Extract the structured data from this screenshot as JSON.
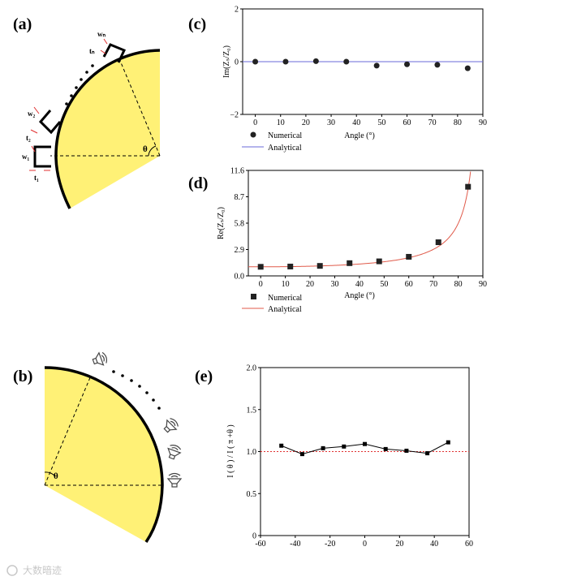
{
  "colors": {
    "yellow": "#fff176",
    "blue_line": "#6a6ad8",
    "red_line": "#e05a4a",
    "red_dotted": "#e03030",
    "marker": "#222222"
  },
  "panels": {
    "a": {
      "label": "(a)",
      "theta": "θ",
      "annotations": [
        "w₁",
        "t₁",
        "w₂",
        "t₂",
        "wₙ",
        "tₙ"
      ]
    },
    "b": {
      "label": "(b)",
      "theta": "θ",
      "icon": "speaker-icon"
    },
    "c": {
      "label": "(c)"
    },
    "d": {
      "label": "(d)"
    },
    "e": {
      "label": "(e)"
    }
  },
  "watermark": "大数暗迹",
  "chart_data": [
    {
      "id": "c",
      "type": "scatter",
      "ylabel": "Im(Zₛ/Z₀)",
      "xlabel": "Angle (°)",
      "xlim": [
        -5,
        90
      ],
      "ylim": [
        -2,
        2
      ],
      "xticks": [
        "0",
        "10",
        "20",
        "30",
        "40",
        "50",
        "60",
        "70",
        "80",
        "90"
      ],
      "yticks": [
        "−2",
        "0",
        "2"
      ],
      "series": [
        {
          "name": "Numerical",
          "marker": "circle",
          "x": [
            0,
            12,
            24,
            36,
            48,
            60,
            72,
            84
          ],
          "y": [
            0.0,
            0.0,
            0.02,
            0.0,
            -0.15,
            -0.1,
            -0.12,
            -0.25
          ]
        },
        {
          "name": "Analytical",
          "kind": "line",
          "x": [
            -5,
            90
          ],
          "y": [
            0,
            0
          ]
        }
      ]
    },
    {
      "id": "d",
      "type": "scatter",
      "ylabel": "Re(Zₛ/Z₀)",
      "xlabel": "Angle (°)",
      "xlim": [
        -5,
        90
      ],
      "ylim": [
        0,
        11.6
      ],
      "xticks": [
        "0",
        "10",
        "20",
        "30",
        "40",
        "50",
        "60",
        "70",
        "80",
        "90"
      ],
      "yticks": [
        "0.0",
        "2.9",
        "5.8",
        "8.7",
        "11.6"
      ],
      "series": [
        {
          "name": "Numerical",
          "marker": "square",
          "x": [
            0,
            12,
            24,
            36,
            48,
            60,
            72,
            84
          ],
          "y": [
            1.0,
            1.03,
            1.1,
            1.4,
            1.6,
            2.1,
            3.7,
            9.8
          ]
        },
        {
          "name": "Analytical",
          "kind": "curve",
          "formula": "1/cos(angle)"
        }
      ]
    },
    {
      "id": "e",
      "type": "line",
      "ylabel": "I ( θ ) / I ( π +θ )",
      "xlabel": "",
      "xlim": [
        -60,
        60
      ],
      "ylim": [
        0,
        2.0
      ],
      "xticks": [
        "-60",
        "-40",
        "-20",
        "0",
        "20",
        "40",
        "60"
      ],
      "yticks": [
        "0",
        "0.5",
        "1.0",
        "1.5",
        "2.0"
      ],
      "reference_line": 1.0,
      "series": [
        {
          "name": "",
          "marker": "square",
          "x": [
            -48,
            -36,
            -24,
            -12,
            0,
            12,
            24,
            36,
            48
          ],
          "y": [
            1.07,
            0.97,
            1.04,
            1.06,
            1.09,
            1.03,
            1.01,
            0.98,
            1.11
          ]
        }
      ]
    }
  ]
}
